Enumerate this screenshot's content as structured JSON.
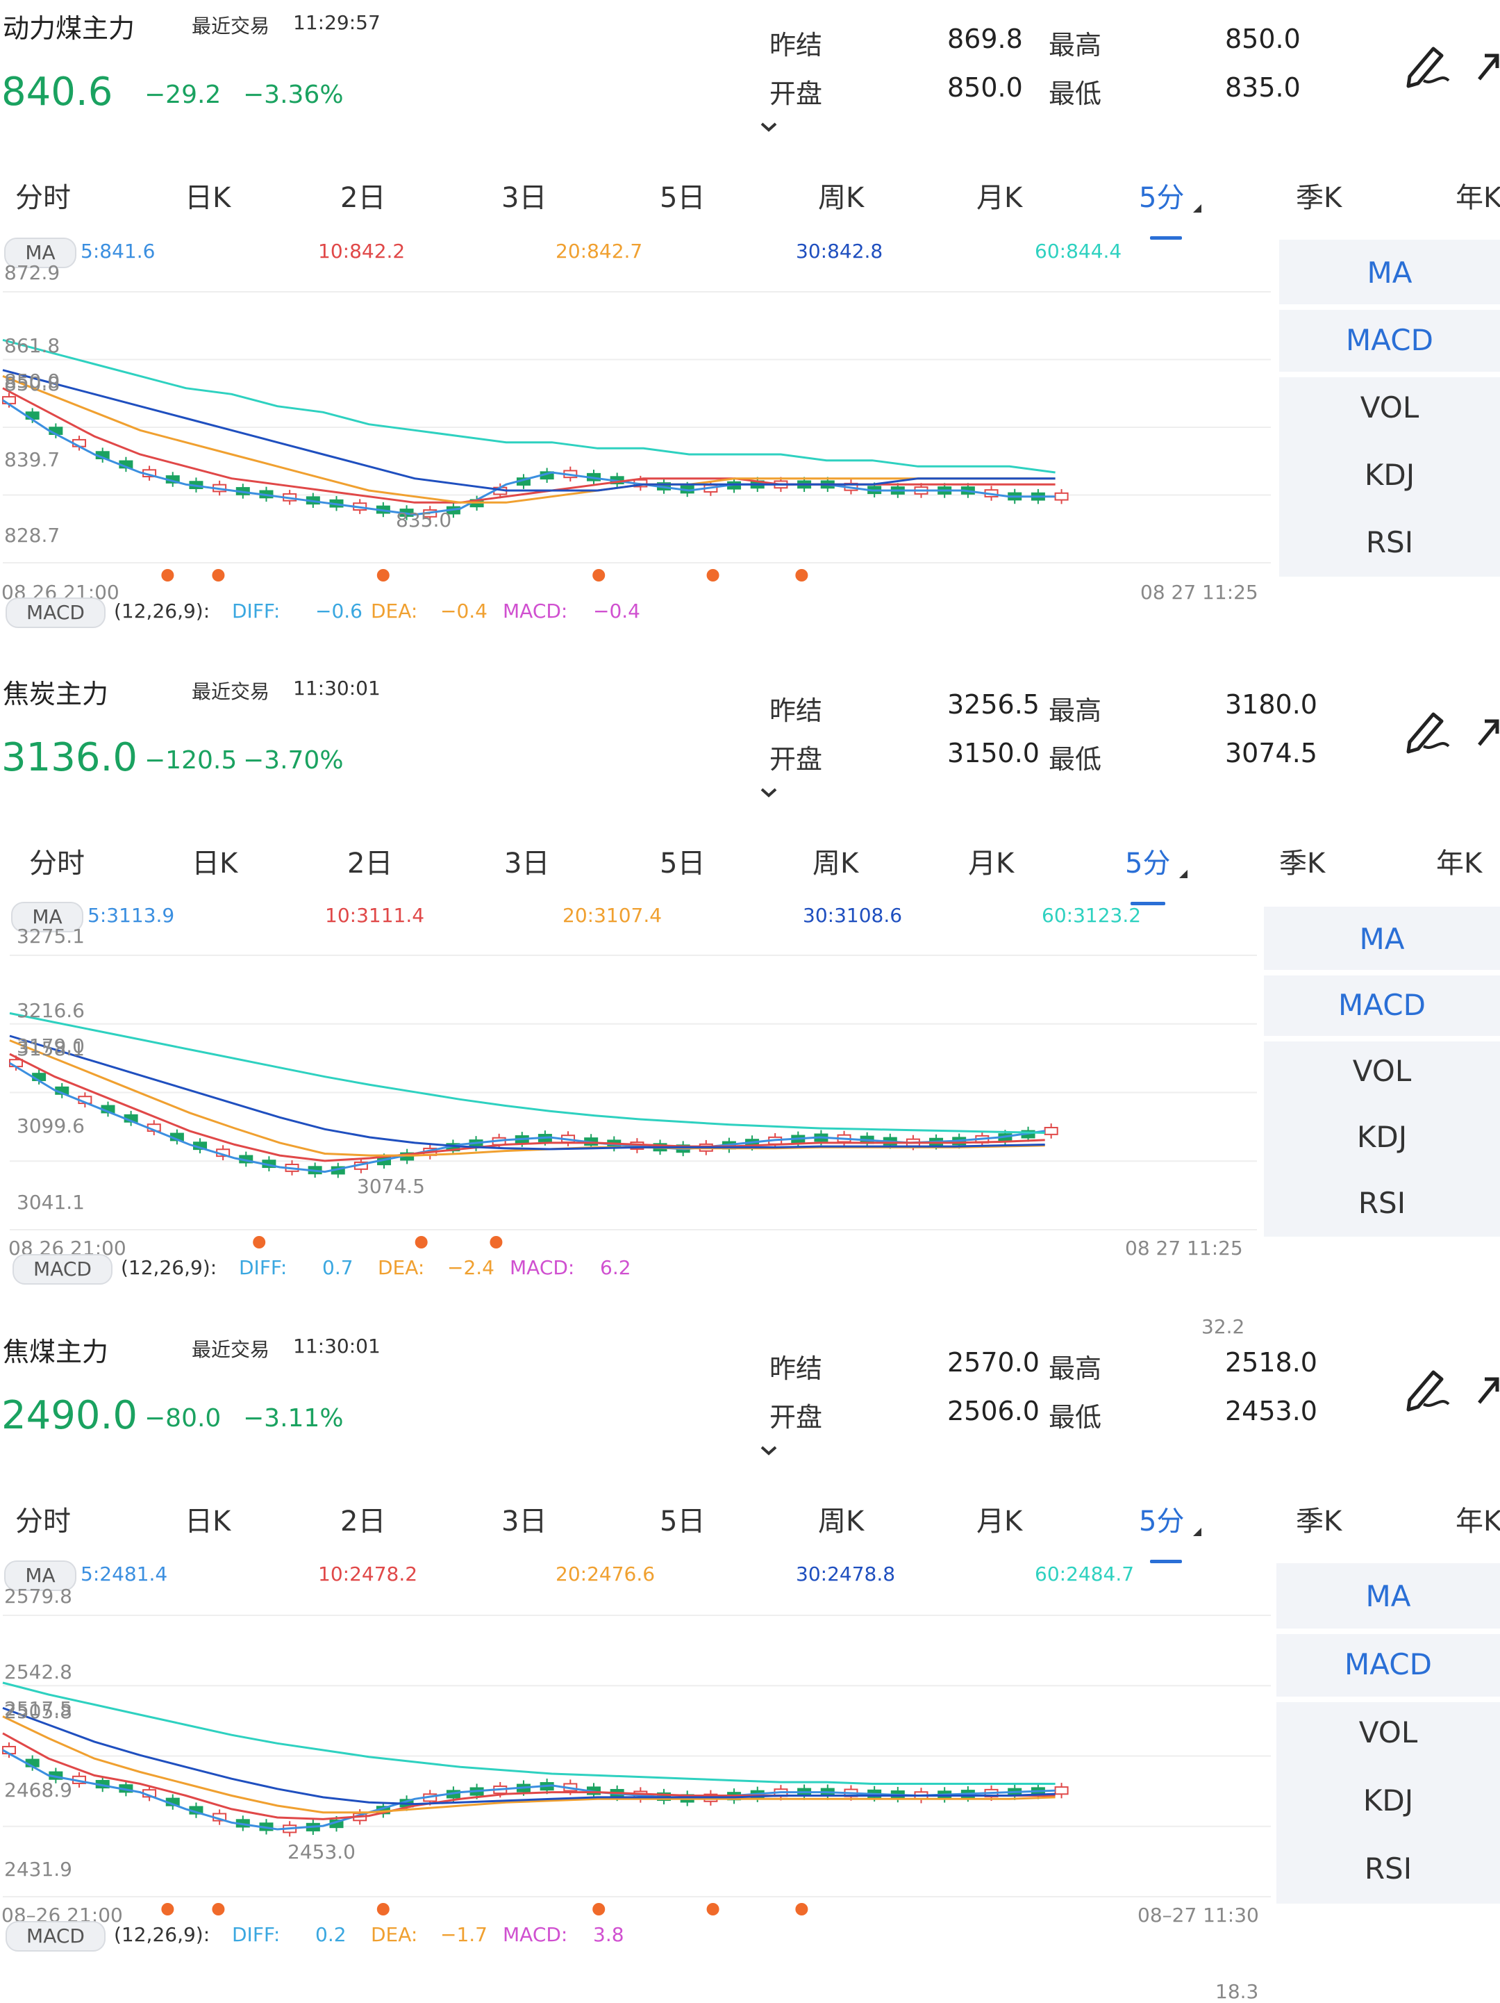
{
  "labels": {
    "last_trade": "最近交易",
    "prev_settle": "昨结",
    "open": "开盘",
    "high": "最高",
    "low": "最低",
    "ma": "MA",
    "macd": "MACD",
    "macd_params": "(12,26,9):",
    "diff": "DIFF:",
    "dea": "DEA:",
    "macd_val": "MACD:"
  },
  "tabs": [
    "分时",
    "日K",
    "2日",
    "3日",
    "5日",
    "周K",
    "月K",
    "5分",
    "季K",
    "年K"
  ],
  "active_tab": "5分",
  "indicators": [
    "MA",
    "MACD",
    "VOL",
    "KDJ",
    "RSI"
  ],
  "colors": {
    "down": "#1aa260",
    "up": "#e04848",
    "ma5": "#3b8fe0",
    "ma10": "#e04848",
    "ma20": "#f0a030",
    "ma30": "#1f4fbf",
    "ma60": "#2ed1c0",
    "macd_diff": "#3aa7e0",
    "macd_dea": "#f0a030",
    "macd_val": "#d050d0",
    "accent": "#2a6fd6",
    "marker": "#f06a2a"
  },
  "panels": [
    {
      "name": "动力煤主力",
      "time": "11:29:57",
      "price": "840.6",
      "change": "−29.2",
      "change_pct": "−3.36%",
      "prev_settle": "869.8",
      "open": "850.0",
      "high": "850.0",
      "low": "835.0",
      "ma_values": [
        "5:841.6",
        "10:842.2",
        "20:842.7",
        "30:842.8",
        "60:844.4"
      ],
      "axis": [
        "872.9",
        "861.8",
        "850.0",
        "850.8",
        "839.7",
        "828.7"
      ],
      "low_mark": "835.0",
      "high_mark": "850.0",
      "time_start": "08 26 21:00",
      "time_end": "08 27 11:25",
      "macd": {
        "diff": "−0.6",
        "dea": "−0.4",
        "macd": "−0.4"
      },
      "chart_data": {
        "type": "line",
        "series": [
          {
            "name": "5",
            "values": [
              856,
              851,
              847,
              844,
              842,
              841,
              840,
              839,
              838,
              837,
              838,
              842,
              844,
              843,
              842,
              841,
              842,
              842,
              842,
              841,
              841,
              841,
              840,
              840
            ]
          },
          {
            "name": "10",
            "values": [
              858,
              854,
              850,
              847,
              845,
              843,
              842,
              841,
              840,
              839,
              839,
              840,
              841,
              842,
              843,
              843,
              843,
              842,
              842,
              842,
              842,
              842,
              842,
              842
            ]
          },
          {
            "name": "20",
            "values": [
              860,
              857,
              854,
              851,
              849,
              847,
              845,
              843,
              841,
              840,
              839,
              839,
              840,
              841,
              842,
              842,
              843,
              843,
              843,
              843,
              843,
              843,
              843,
              843
            ]
          },
          {
            "name": "30",
            "values": [
              861,
              859,
              857,
              855,
              853,
              851,
              849,
              847,
              845,
              843,
              842,
              841,
              841,
              841,
              842,
              842,
              842,
              842,
              842,
              842,
              843,
              843,
              843,
              843
            ]
          },
          {
            "name": "60",
            "values": [
              866,
              864,
              862,
              860,
              858,
              857,
              855,
              854,
              852,
              851,
              850,
              849,
              849,
              848,
              848,
              847,
              847,
              847,
              846,
              846,
              845,
              845,
              845,
              844
            ]
          }
        ]
      }
    },
    {
      "name": "焦炭主力",
      "time": "11:30:01",
      "price": "3136.0",
      "change": "−120.5",
      "change_pct": "−3.70%",
      "prev_settle": "3256.5",
      "open": "3150.0",
      "high": "3180.0",
      "low": "3074.5",
      "ma_values": [
        "5:3113.9",
        "10:3111.4",
        "20:3107.4",
        "30:3108.6",
        "60:3123.2"
      ],
      "axis": [
        "3275.1",
        "3216.6",
        "3179.0",
        "3158.1",
        "3099.6",
        "3041.1"
      ],
      "low_mark": "3074.5",
      "high_mark": "3179.0",
      "time_start": "08 26 21:00",
      "time_end": "08 27 11:25",
      "macd": {
        "diff": "0.7",
        "dea": "−2.4",
        "macd": "6.2"
      },
      "corner_note": "32.2",
      "chart_data": {
        "type": "line",
        "series": [
          {
            "name": "5",
            "values": [
              3200,
              3170,
              3150,
              3130,
              3110,
              3095,
              3085,
              3080,
              3090,
              3100,
              3110,
              3115,
              3118,
              3112,
              3108,
              3105,
              3110,
              3115,
              3118,
              3115,
              3112,
              3114,
              3118,
              3125
            ]
          },
          {
            "name": "10",
            "values": [
              3210,
              3185,
              3165,
              3145,
              3125,
              3110,
              3098,
              3092,
              3095,
              3100,
              3105,
              3110,
              3112,
              3112,
              3110,
              3108,
              3108,
              3110,
              3112,
              3112,
              3112,
              3112,
              3113,
              3115
            ]
          },
          {
            "name": "20",
            "values": [
              3225,
              3205,
              3185,
              3165,
              3145,
              3128,
              3112,
              3100,
              3098,
              3098,
              3100,
              3103,
              3105,
              3107,
              3107,
              3106,
              3106,
              3106,
              3107,
              3107,
              3107,
              3107,
              3108,
              3109
            ]
          },
          {
            "name": "30",
            "values": [
              3230,
              3215,
              3200,
              3185,
              3170,
              3155,
              3140,
              3127,
              3118,
              3112,
              3108,
              3106,
              3105,
              3106,
              3107,
              3107,
              3107,
              3107,
              3108,
              3108,
              3108,
              3108,
              3109,
              3110
            ]
          },
          {
            "name": "60",
            "values": [
              3255,
              3245,
              3235,
              3225,
              3215,
              3205,
              3195,
              3185,
              3176,
              3168,
              3160,
              3153,
              3147,
              3142,
              3138,
              3135,
              3132,
              3130,
              3128,
              3127,
              3126,
              3125,
              3124,
              3123
            ]
          }
        ]
      }
    },
    {
      "name": "焦煤主力",
      "time": "11:30:01",
      "price": "2490.0",
      "change": "−80.0",
      "change_pct": "−3.11%",
      "prev_settle": "2570.0",
      "open": "2506.0",
      "high": "2518.0",
      "low": "2453.0",
      "ma_values": [
        "5:2481.4",
        "10:2478.2",
        "20:2476.6",
        "30:2478.8",
        "60:2484.7"
      ],
      "axis": [
        "2579.8",
        "2542.8",
        "2517.5",
        "2505.8",
        "2468.9",
        "2431.9"
      ],
      "low_mark": "2453.0",
      "high_mark": "2517.5",
      "time_start": "08–26 21:00",
      "time_end": "08–27 11:30",
      "macd": {
        "diff": "0.2",
        "dea": "−1.7",
        "macd": "3.8"
      },
      "corner_note": "18.3",
      "chart_data": {
        "type": "line",
        "series": [
          {
            "name": "5",
            "values": [
              2505,
              2490,
              2485,
              2480,
              2470,
              2462,
              2458,
              2460,
              2468,
              2476,
              2480,
              2482,
              2484,
              2480,
              2478,
              2476,
              2478,
              2480,
              2480,
              2479,
              2478,
              2479,
              2480,
              2481
            ]
          },
          {
            "name": "10",
            "values": [
              2515,
              2500,
              2490,
              2485,
              2478,
              2470,
              2465,
              2464,
              2466,
              2472,
              2476,
              2479,
              2480,
              2480,
              2479,
              2478,
              2478,
              2478,
              2478,
              2478,
              2478,
              2478,
              2478,
              2478
            ]
          },
          {
            "name": "20",
            "values": [
              2525,
              2512,
              2500,
              2492,
              2485,
              2478,
              2472,
              2468,
              2468,
              2470,
              2472,
              2474,
              2475,
              2476,
              2476,
              2476,
              2476,
              2476,
              2476,
              2476,
              2476,
              2476,
              2476,
              2477
            ]
          },
          {
            "name": "30",
            "values": [
              2530,
              2520,
              2510,
              2502,
              2495,
              2488,
              2482,
              2477,
              2474,
              2473,
              2474,
              2475,
              2476,
              2477,
              2477,
              2477,
              2477,
              2478,
              2478,
              2478,
              2478,
              2478,
              2478,
              2479
            ]
          },
          {
            "name": "60",
            "values": [
              2545,
              2538,
              2532,
              2526,
              2520,
              2514,
              2509,
              2505,
              2501,
              2498,
              2495,
              2493,
              2491,
              2490,
              2489,
              2488,
              2487,
              2486,
              2486,
              2485,
              2485,
              2485,
              2485,
              2485
            ]
          }
        ]
      }
    }
  ]
}
